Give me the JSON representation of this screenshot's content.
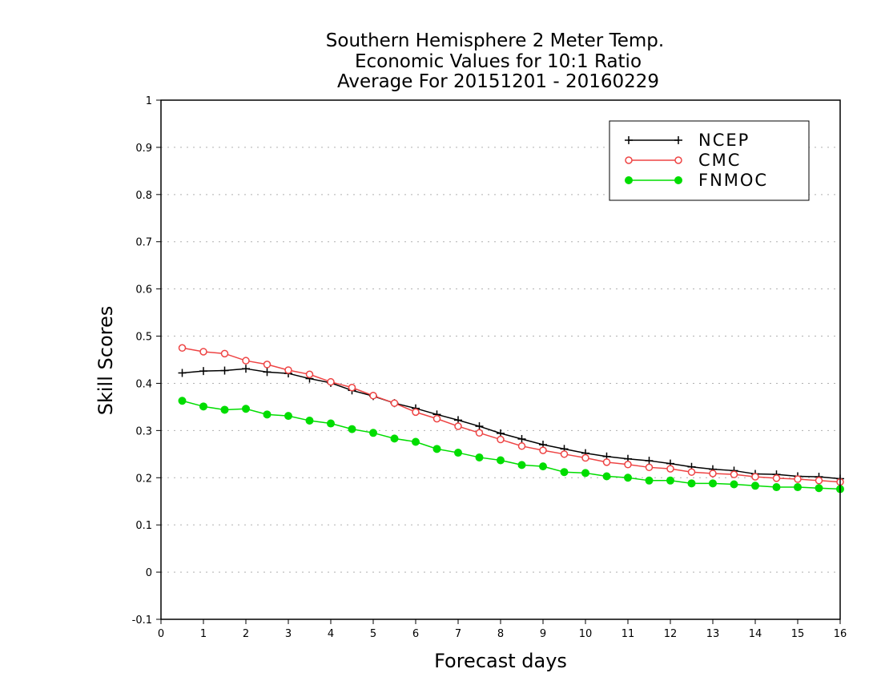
{
  "chart_data": {
    "type": "line",
    "title_lines": [
      "Southern Hemisphere 2 Meter Temp.",
      "Economic Values for 10:1 Ratio",
      "Average For 20151201 - 20160229"
    ],
    "xlabel": "Forecast days",
    "ylabel": "Skill Scores",
    "xlim": [
      0,
      16
    ],
    "ylim": [
      -0.1,
      1
    ],
    "x_ticks": [
      0,
      1,
      2,
      3,
      4,
      5,
      6,
      7,
      8,
      9,
      10,
      11,
      12,
      13,
      14,
      15,
      16
    ],
    "x_tick_labels": [
      "0",
      "1",
      "2",
      "3",
      "4",
      "5",
      "6",
      "7",
      "8",
      "9",
      "10",
      "11",
      "12",
      "13",
      "14",
      "15",
      "16"
    ],
    "y_ticks": [
      -0.1,
      0,
      0.1,
      0.2,
      0.3,
      0.4,
      0.5,
      0.6,
      0.7,
      0.8,
      0.9,
      1
    ],
    "y_tick_labels": [
      "-0.1",
      "0",
      "0.1",
      "0.2",
      "0.3",
      "0.4",
      "0.5",
      "0.6",
      "0.7",
      "0.8",
      "0.9",
      "1"
    ],
    "grid": true,
    "legend_position": "top-right",
    "x": [
      0.5,
      1,
      1.5,
      2,
      2.5,
      3,
      3.5,
      4,
      4.5,
      5,
      5.5,
      6,
      6.5,
      7,
      7.5,
      8,
      8.5,
      9,
      9.5,
      10,
      10.5,
      11,
      11.5,
      12,
      12.5,
      13,
      13.5,
      14,
      14.5,
      15,
      15.5,
      16
    ],
    "series": [
      {
        "name": "NCEP",
        "color": "#000000",
        "marker": "plus",
        "values": [
          0.422,
          0.426,
          0.427,
          0.431,
          0.424,
          0.421,
          0.41,
          0.401,
          0.385,
          0.373,
          0.358,
          0.347,
          0.334,
          0.322,
          0.309,
          0.294,
          0.282,
          0.27,
          0.261,
          0.252,
          0.245,
          0.24,
          0.236,
          0.23,
          0.223,
          0.218,
          0.215,
          0.208,
          0.207,
          0.203,
          0.202,
          0.198
        ]
      },
      {
        "name": "CMC",
        "color": "#ee4444",
        "marker": "open-circle",
        "values": [
          0.475,
          0.467,
          0.463,
          0.448,
          0.44,
          0.428,
          0.419,
          0.403,
          0.391,
          0.374,
          0.358,
          0.339,
          0.325,
          0.309,
          0.295,
          0.281,
          0.267,
          0.258,
          0.25,
          0.242,
          0.233,
          0.228,
          0.222,
          0.219,
          0.212,
          0.209,
          0.207,
          0.202,
          0.199,
          0.197,
          0.194,
          0.191
        ]
      },
      {
        "name": "FNMOC",
        "color": "#00dd00",
        "marker": "filled-circle",
        "values": [
          0.363,
          0.351,
          0.344,
          0.346,
          0.334,
          0.331,
          0.321,
          0.315,
          0.303,
          0.295,
          0.283,
          0.276,
          0.261,
          0.253,
          0.243,
          0.237,
          0.227,
          0.224,
          0.212,
          0.21,
          0.203,
          0.2,
          0.194,
          0.194,
          0.188,
          0.188,
          0.186,
          0.183,
          0.18,
          0.18,
          0.178,
          0.176
        ]
      }
    ]
  }
}
